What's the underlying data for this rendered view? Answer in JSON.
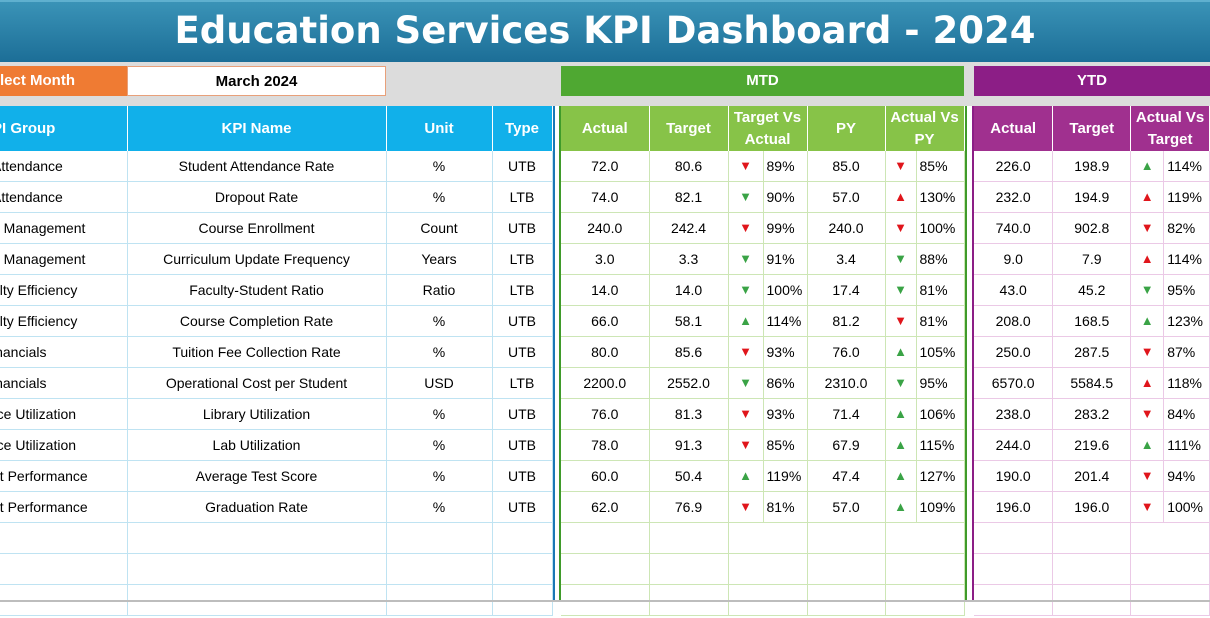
{
  "title": "Education Services KPI Dashboard - 2024",
  "select_month": {
    "label": "lect Month",
    "value": "March 2024"
  },
  "mtd_label": "MTD",
  "ytd_label": "YTD",
  "left_headers": [
    "PI Group",
    "KPI Name",
    "Unit",
    "Type"
  ],
  "mtd_headers": [
    "Actual",
    "Target",
    "Target Vs Actual",
    "PY",
    "Actual Vs PY"
  ],
  "ytd_headers": [
    "Actual",
    "Target",
    "Actual Vs Target"
  ],
  "colors": {
    "up": "#3aa346",
    "down": "#e0151b"
  },
  "rows": [
    {
      "group": "Attendance",
      "kpi": "Student Attendance Rate",
      "unit": "%",
      "type": "UTB",
      "m_actual": "72.0",
      "m_target": "80.6",
      "m_tva_dir": "down",
      "m_tva": "89%",
      "m_py": "85.0",
      "m_avp_dir": "down",
      "m_avp": "85%",
      "y_actual": "226.0",
      "y_target": "198.9",
      "y_avt_dir": "up",
      "y_avt": "114%"
    },
    {
      "group": "Attendance",
      "kpi": "Dropout Rate",
      "unit": "%",
      "type": "LTB",
      "m_actual": "74.0",
      "m_target": "82.1",
      "m_tva_dir": "downg",
      "m_tva": "90%",
      "m_py": "57.0",
      "m_avp_dir": "upr",
      "m_avp": "130%",
      "y_actual": "232.0",
      "y_target": "194.9",
      "y_avt_dir": "upr",
      "y_avt": "119%"
    },
    {
      "group": "e Management",
      "kpi": "Course Enrollment",
      "unit": "Count",
      "type": "UTB",
      "m_actual": "240.0",
      "m_target": "242.4",
      "m_tva_dir": "down",
      "m_tva": "99%",
      "m_py": "240.0",
      "m_avp_dir": "down",
      "m_avp": "100%",
      "y_actual": "740.0",
      "y_target": "902.8",
      "y_avt_dir": "down",
      "y_avt": "82%"
    },
    {
      "group": "e Management",
      "kpi": "Curriculum Update Frequency",
      "unit": "Years",
      "type": "LTB",
      "m_actual": "3.0",
      "m_target": "3.3",
      "m_tva_dir": "downg",
      "m_tva": "91%",
      "m_py": "3.4",
      "m_avp_dir": "downg",
      "m_avp": "88%",
      "y_actual": "9.0",
      "y_target": "7.9",
      "y_avt_dir": "upr",
      "y_avt": "114%"
    },
    {
      "group": "ulty Efficiency",
      "kpi": "Faculty-Student Ratio",
      "unit": "Ratio",
      "type": "LTB",
      "m_actual": "14.0",
      "m_target": "14.0",
      "m_tva_dir": "downg",
      "m_tva": "100%",
      "m_py": "17.4",
      "m_avp_dir": "downg",
      "m_avp": "81%",
      "y_actual": "43.0",
      "y_target": "45.2",
      "y_avt_dir": "downg",
      "y_avt": "95%"
    },
    {
      "group": "ulty Efficiency",
      "kpi": "Course Completion Rate",
      "unit": "%",
      "type": "UTB",
      "m_actual": "66.0",
      "m_target": "58.1",
      "m_tva_dir": "up",
      "m_tva": "114%",
      "m_py": "81.2",
      "m_avp_dir": "down",
      "m_avp": "81%",
      "y_actual": "208.0",
      "y_target": "168.5",
      "y_avt_dir": "up",
      "y_avt": "123%"
    },
    {
      "group": "inancials",
      "kpi": "Tuition Fee Collection Rate",
      "unit": "%",
      "type": "UTB",
      "m_actual": "80.0",
      "m_target": "85.6",
      "m_tva_dir": "down",
      "m_tva": "93%",
      "m_py": "76.0",
      "m_avp_dir": "up",
      "m_avp": "105%",
      "y_actual": "250.0",
      "y_target": "287.5",
      "y_avt_dir": "down",
      "y_avt": "87%"
    },
    {
      "group": "inancials",
      "kpi": "Operational Cost per Student",
      "unit": "USD",
      "type": "LTB",
      "m_actual": "2200.0",
      "m_target": "2552.0",
      "m_tva_dir": "downg",
      "m_tva": "86%",
      "m_py": "2310.0",
      "m_avp_dir": "downg",
      "m_avp": "95%",
      "y_actual": "6570.0",
      "y_target": "5584.5",
      "y_avt_dir": "upr",
      "y_avt": "118%"
    },
    {
      "group": "rce Utilization",
      "kpi": "Library Utilization",
      "unit": "%",
      "type": "UTB",
      "m_actual": "76.0",
      "m_target": "81.3",
      "m_tva_dir": "down",
      "m_tva": "93%",
      "m_py": "71.4",
      "m_avp_dir": "up",
      "m_avp": "106%",
      "y_actual": "238.0",
      "y_target": "283.2",
      "y_avt_dir": "down",
      "y_avt": "84%"
    },
    {
      "group": "rce Utilization",
      "kpi": "Lab Utilization",
      "unit": "%",
      "type": "UTB",
      "m_actual": "78.0",
      "m_target": "91.3",
      "m_tva_dir": "down",
      "m_tva": "85%",
      "m_py": "67.9",
      "m_avp_dir": "up",
      "m_avp": "115%",
      "y_actual": "244.0",
      "y_target": "219.6",
      "y_avt_dir": "up",
      "y_avt": "111%"
    },
    {
      "group": "nt Performance",
      "kpi": "Average Test Score",
      "unit": "%",
      "type": "UTB",
      "m_actual": "60.0",
      "m_target": "50.4",
      "m_tva_dir": "up",
      "m_tva": "119%",
      "m_py": "47.4",
      "m_avp_dir": "up",
      "m_avp": "127%",
      "y_actual": "190.0",
      "y_target": "201.4",
      "y_avt_dir": "down",
      "y_avt": "94%"
    },
    {
      "group": "nt Performance",
      "kpi": "Graduation Rate",
      "unit": "%",
      "type": "UTB",
      "m_actual": "62.0",
      "m_target": "76.9",
      "m_tva_dir": "down",
      "m_tva": "81%",
      "m_py": "57.0",
      "m_avp_dir": "up",
      "m_avp": "109%",
      "y_actual": "196.0",
      "y_target": "196.0",
      "y_avt_dir": "down",
      "y_avt": "100%"
    }
  ]
}
